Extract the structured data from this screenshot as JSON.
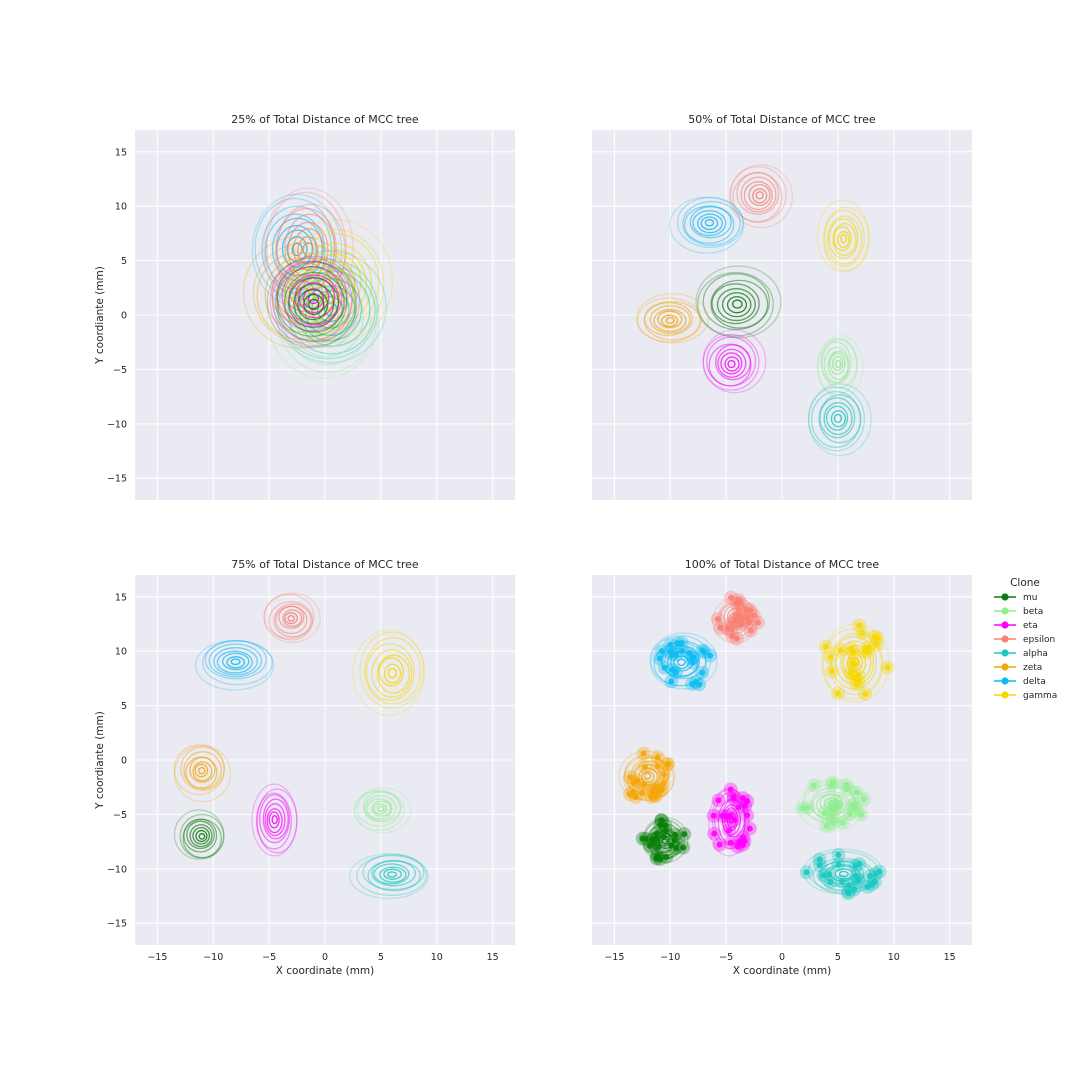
{
  "chart_data": [
    {
      "type": "contour",
      "title": "25% of Total Distance of MCC tree",
      "xlabel": "",
      "ylabel": "Y coordiante (mm)",
      "xlim": [
        -17,
        17
      ],
      "ylim": [
        -17,
        17
      ],
      "xticks": [
        "",
        "",
        "",
        "",
        "",
        "",
        ""
      ],
      "yticks": [
        "−15",
        "−10",
        "−5",
        "0",
        "5",
        "10",
        "15"
      ],
      "grid": true,
      "clusters": [
        {
          "clone": "delta",
          "cx": -2.5,
          "cy": 6.0,
          "sx": 4.0,
          "sy": 5.0
        },
        {
          "clone": "epsilon",
          "cx": -1.5,
          "cy": 6.0,
          "sx": 4.0,
          "sy": 5.5
        },
        {
          "clone": "gamma",
          "cx": 1.0,
          "cy": 3.0,
          "sx": 5.0,
          "sy": 5.5
        },
        {
          "clone": "alpha",
          "cx": 0.5,
          "cy": 0.5,
          "sx": 5.0,
          "sy": 5.0
        },
        {
          "clone": "beta",
          "cx": 0.0,
          "cy": 0.0,
          "sx": 5.0,
          "sy": 5.5
        },
        {
          "clone": "zeta",
          "cx": -2.0,
          "cy": 2.0,
          "sx": 5.0,
          "sy": 5.0
        },
        {
          "clone": "eta",
          "cx": -1.0,
          "cy": 1.5,
          "sx": 4.0,
          "sy": 4.0
        },
        {
          "clone": "mu",
          "cx": -1.0,
          "cy": 1.0,
          "sx": 4.0,
          "sy": 4.0
        }
      ]
    },
    {
      "type": "contour",
      "title": "50% of Total Distance of MCC tree",
      "xlabel": "",
      "ylabel": "",
      "xlim": [
        -17,
        17
      ],
      "ylim": [
        -17,
        17
      ],
      "xticks": [
        "",
        "",
        "",
        "",
        "",
        "",
        ""
      ],
      "yticks": [
        "",
        "",
        "",
        "",
        "",
        "",
        ""
      ],
      "grid": true,
      "clusters": [
        {
          "clone": "epsilon",
          "cx": -2.0,
          "cy": 11.0,
          "sx": 2.8,
          "sy": 2.8
        },
        {
          "clone": "delta",
          "cx": -6.5,
          "cy": 8.5,
          "sx": 3.3,
          "sy": 2.5
        },
        {
          "clone": "gamma",
          "cx": 5.5,
          "cy": 7.0,
          "sx": 2.3,
          "sy": 3.2
        },
        {
          "clone": "mu",
          "cx": -4.0,
          "cy": 1.0,
          "sx": 3.8,
          "sy": 3.2
        },
        {
          "clone": "zeta",
          "cx": -10.0,
          "cy": -0.5,
          "sx": 3.2,
          "sy": 2.2
        },
        {
          "clone": "eta",
          "cx": -4.5,
          "cy": -4.5,
          "sx": 2.8,
          "sy": 2.8
        },
        {
          "clone": "beta",
          "cx": 5.0,
          "cy": -4.5,
          "sx": 2.0,
          "sy": 2.8
        },
        {
          "clone": "alpha",
          "cx": 5.0,
          "cy": -9.5,
          "sx": 2.8,
          "sy": 3.2
        }
      ]
    },
    {
      "type": "contour",
      "title": "75% of Total Distance of MCC tree",
      "xlabel": "X coordinate (mm)",
      "ylabel": "Y coordiante (mm)",
      "xlim": [
        -17,
        17
      ],
      "ylim": [
        -17,
        17
      ],
      "xticks": [
        "−15",
        "−10",
        "−5",
        "0",
        "5",
        "10",
        "15"
      ],
      "yticks": [
        "−15",
        "−10",
        "−5",
        "0",
        "5",
        "10",
        "15"
      ],
      "grid": true,
      "clusters": [
        {
          "clone": "epsilon",
          "cx": -3.0,
          "cy": 13.0,
          "sx": 2.5,
          "sy": 2.2
        },
        {
          "clone": "delta",
          "cx": -8.0,
          "cy": 9.0,
          "sx": 3.5,
          "sy": 2.2
        },
        {
          "clone": "gamma",
          "cx": 6.0,
          "cy": 8.0,
          "sx": 3.2,
          "sy": 3.8
        },
        {
          "clone": "zeta",
          "cx": -11.0,
          "cy": -1.0,
          "sx": 2.5,
          "sy": 2.5
        },
        {
          "clone": "mu",
          "cx": -11.0,
          "cy": -7.0,
          "sx": 2.2,
          "sy": 2.2
        },
        {
          "clone": "eta",
          "cx": -4.5,
          "cy": -5.5,
          "sx": 2.0,
          "sy": 3.2
        },
        {
          "clone": "beta",
          "cx": 5.0,
          "cy": -4.5,
          "sx": 2.5,
          "sy": 2.0
        },
        {
          "clone": "alpha",
          "cx": 6.0,
          "cy": -10.5,
          "sx": 3.5,
          "sy": 2.0
        }
      ]
    },
    {
      "type": "scatter-density",
      "title": "100% of Total Distance of MCC tree",
      "xlabel": "X coordinate (mm)",
      "ylabel": "",
      "xlim": [
        -17,
        17
      ],
      "ylim": [
        -17,
        17
      ],
      "xticks": [
        "−15",
        "−10",
        "−5",
        "0",
        "5",
        "10",
        "15"
      ],
      "yticks": [
        "",
        "",
        "",
        "",
        "",
        "",
        ""
      ],
      "grid": true,
      "clusters": [
        {
          "clone": "epsilon",
          "cx": -4.0,
          "cy": 13.0,
          "sx": 2.0,
          "sy": 2.0
        },
        {
          "clone": "delta",
          "cx": -9.0,
          "cy": 9.0,
          "sx": 3.0,
          "sy": 2.5
        },
        {
          "clone": "gamma",
          "cx": 6.5,
          "cy": 9.0,
          "sx": 3.0,
          "sy": 3.5
        },
        {
          "clone": "zeta",
          "cx": -12.0,
          "cy": -1.5,
          "sx": 2.5,
          "sy": 2.2
        },
        {
          "clone": "mu",
          "cx": -10.5,
          "cy": -7.5,
          "sx": 2.0,
          "sy": 2.0
        },
        {
          "clone": "eta",
          "cx": -4.5,
          "cy": -5.5,
          "sx": 1.8,
          "sy": 3.0
        },
        {
          "clone": "beta",
          "cx": 4.5,
          "cy": -4.0,
          "sx": 3.0,
          "sy": 2.2
        },
        {
          "clone": "alpha",
          "cx": 5.5,
          "cy": -10.5,
          "sx": 3.5,
          "sy": 2.0
        }
      ]
    }
  ],
  "legend": {
    "title": "Clone",
    "placement": "right of bottom-right panel",
    "entries": [
      {
        "label": "mu",
        "color": "#0a7d0a"
      },
      {
        "label": "beta",
        "color": "#90ee90"
      },
      {
        "label": "eta",
        "color": "#ff00ff"
      },
      {
        "label": "epsilon",
        "color": "#fa8072"
      },
      {
        "label": "alpha",
        "color": "#1ac9c0"
      },
      {
        "label": "zeta",
        "color": "#f5a507"
      },
      {
        "label": "delta",
        "color": "#0bbcf3"
      },
      {
        "label": "gamma",
        "color": "#f7d700"
      }
    ]
  },
  "colors": {
    "plot_background": "#eaeaf2",
    "grid": "#ffffff"
  }
}
